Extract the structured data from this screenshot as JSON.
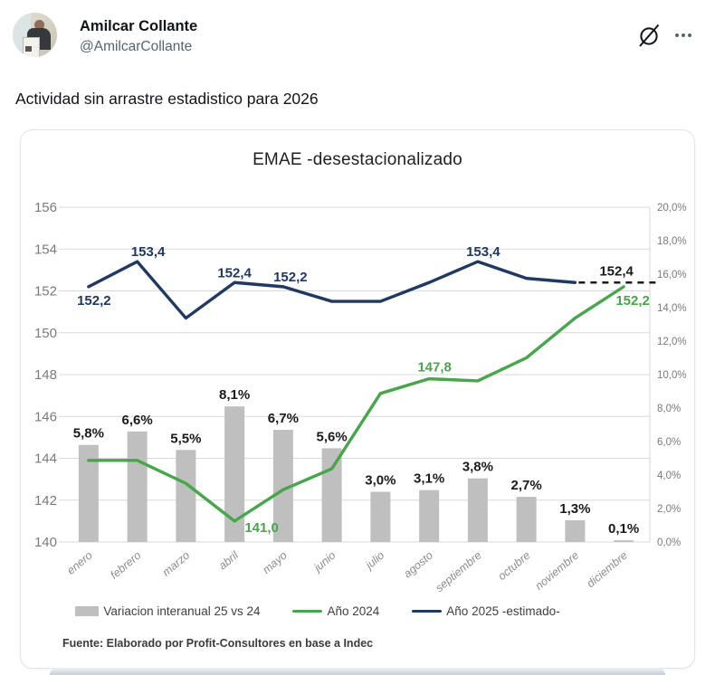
{
  "header": {
    "name": "Amilcar Collante",
    "handle": "@AmilcarCollante",
    "grok_icon": "grok-slash-circle",
    "more_icon": "ellipsis"
  },
  "tweet": {
    "text": "Actividad sin arrastre estadistico para 2026"
  },
  "chart_data": {
    "type": "bar+line combo",
    "title": "EMAE -desestacionalizado",
    "categories": [
      "enero",
      "febrero",
      "marzo",
      "abril",
      "mayo",
      "junio",
      "julio",
      "agosto",
      "septiembre",
      "octubre",
      "noviembre",
      "diciembre"
    ],
    "left_axis": {
      "min": 140,
      "max": 156,
      "step": 2,
      "ticks": [
        "140",
        "142",
        "144",
        "146",
        "148",
        "150",
        "152",
        "154",
        "156"
      ]
    },
    "right_axis": {
      "min": 0,
      "max": 20,
      "step": 2,
      "ticks": [
        "0,0%",
        "2,0%",
        "4,0%",
        "6,0%",
        "8,0%",
        "10,0%",
        "12,0%",
        "14,0%",
        "16,0%",
        "18,0%",
        "20,0%"
      ]
    },
    "grid": true,
    "grid_color": "#d9d9d9",
    "legend_position": "bottom",
    "series": [
      {
        "id": "bars",
        "name": "Variacion interanual 25 vs 24",
        "type": "bar",
        "axis": "right",
        "color": "#bfbfbf",
        "values": [
          5.8,
          6.6,
          5.5,
          8.1,
          6.7,
          5.6,
          3.0,
          3.1,
          3.8,
          2.7,
          1.3,
          0.1
        ],
        "value_labels": [
          "5,8%",
          "6,6%",
          "5,5%",
          "8,1%",
          "6,7%",
          "5,6%",
          "3,0%",
          "3,1%",
          "3,8%",
          "2,7%",
          "1,3%",
          "0,1%"
        ]
      },
      {
        "id": "y2024",
        "name": "Año 2024",
        "type": "line",
        "axis": "left",
        "color": "#47a64b",
        "values": [
          143.9,
          143.9,
          142.8,
          141.0,
          142.5,
          143.5,
          147.1,
          147.8,
          147.7,
          148.8,
          150.7,
          152.2
        ],
        "point_labels": [
          {
            "month": 3,
            "text": "141,0",
            "dx": 30,
            "dy": 12,
            "color": "#47a64b"
          },
          {
            "month": 7,
            "text": "147,8",
            "dx": 6,
            "dy": -8,
            "color": "#47a64b"
          },
          {
            "month": 11,
            "text": "152,2",
            "dx": 10,
            "dy": 20,
            "color": "#47a64b"
          }
        ]
      },
      {
        "id": "y2025",
        "name": "Año 2025 -estimado-",
        "type": "line",
        "axis": "left",
        "color": "#1f3864",
        "values": [
          152.2,
          153.4,
          150.7,
          152.4,
          152.2,
          151.5,
          151.5,
          152.4,
          153.4,
          152.6,
          152.4,
          null
        ],
        "point_labels": [
          {
            "month": 0,
            "text": "152,2",
            "dx": 6,
            "dy": 20,
            "color": "#1f3864"
          },
          {
            "month": 1,
            "text": "153,4",
            "dx": 12,
            "dy": -6,
            "color": "#1f3864"
          },
          {
            "month": 3,
            "text": "152,4",
            "dx": 0,
            "dy": -6,
            "color": "#1f3864"
          },
          {
            "month": 4,
            "text": "152,2",
            "dx": 8,
            "dy": -6,
            "color": "#1f3864"
          },
          {
            "month": 8,
            "text": "153,4",
            "dx": 6,
            "dy": -6,
            "color": "#1f3864"
          }
        ],
        "dashed_projection": {
          "from_month": 10,
          "value": 152.4,
          "label": "152,4",
          "label_dx": -8,
          "label_dy": -8,
          "color": "#1a1a1a"
        }
      }
    ],
    "legend": [
      {
        "label": "Variacion interanual 25 vs 24",
        "swatch": "bar",
        "color": "#bfbfbf"
      },
      {
        "label": "Año 2024",
        "swatch": "line",
        "color": "#47a64b"
      },
      {
        "label": "Año 2025 -estimado-",
        "swatch": "line",
        "color": "#1f3864"
      }
    ],
    "source": "Fuente: Elaborado por Profit-Consultores en base a Indec"
  }
}
